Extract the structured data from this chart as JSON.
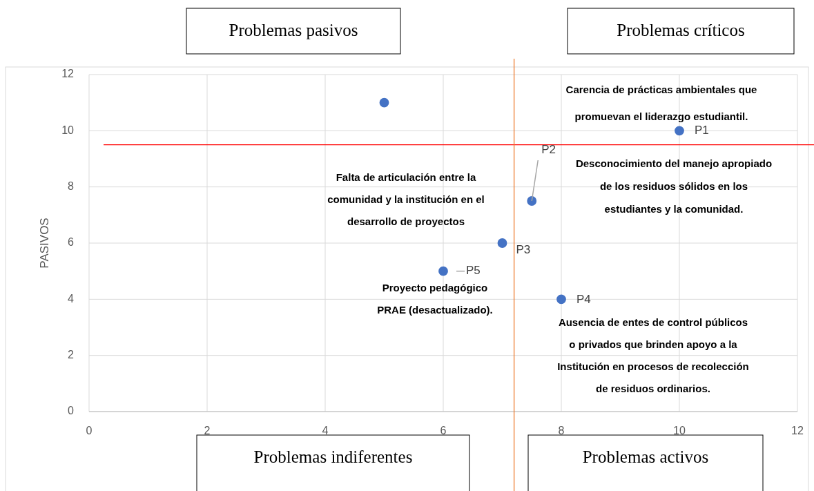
{
  "chart_data": {
    "type": "scatter",
    "ylabel": "PASIVOS",
    "x": [
      5,
      10,
      7.5,
      7,
      8,
      6
    ],
    "series": [
      {
        "color": "#4472c4",
        "values": [
          11,
          10,
          7.5,
          6,
          4,
          5
        ]
      }
    ],
    "marker": "circle",
    "grid": true,
    "xlim": [
      0,
      12
    ],
    "xticks": [
      0,
      2,
      4,
      6,
      8,
      10,
      12
    ],
    "ylim": [
      0,
      12
    ],
    "yticks": [
      0,
      2,
      4,
      6,
      8,
      10,
      12
    ],
    "ref_lines": [
      {
        "axis": "y",
        "value": 9.5,
        "color": "#ff0000"
      },
      {
        "axis": "x",
        "value": 7.2,
        "color": "#ed7d31"
      }
    ],
    "annotations": [
      {
        "text": "P1",
        "x": 10,
        "y": 10
      },
      "Carencia de prácticas ambientales que promuevan el liderazgo estudiantil.",
      {
        "text": "P2",
        "x": 7.5,
        "y": 7.5
      },
      "Desconocimiento del manejo apropiado de los residuos sólidos en los estudiantes y la comunidad.",
      {
        "text": "P3",
        "x": 7,
        "y": 6
      },
      "Falta de articulación entre la comunidad y la institución en el desarrollo de proyectos",
      {
        "text": "P4",
        "x": 8,
        "y": 4
      },
      "Ausencia de entes de control públicos o privados que brinden apoyo a la Institución en procesos de recolección de residuos ordinarios.",
      {
        "text": "P5",
        "x": 6,
        "y": 5
      },
      "Proyecto pedagógico PRAE (desactualizado).",
      "Problemas pasivos",
      "Problemas críticos",
      "Problemas indiferentes",
      "Problemas activos"
    ]
  }
}
